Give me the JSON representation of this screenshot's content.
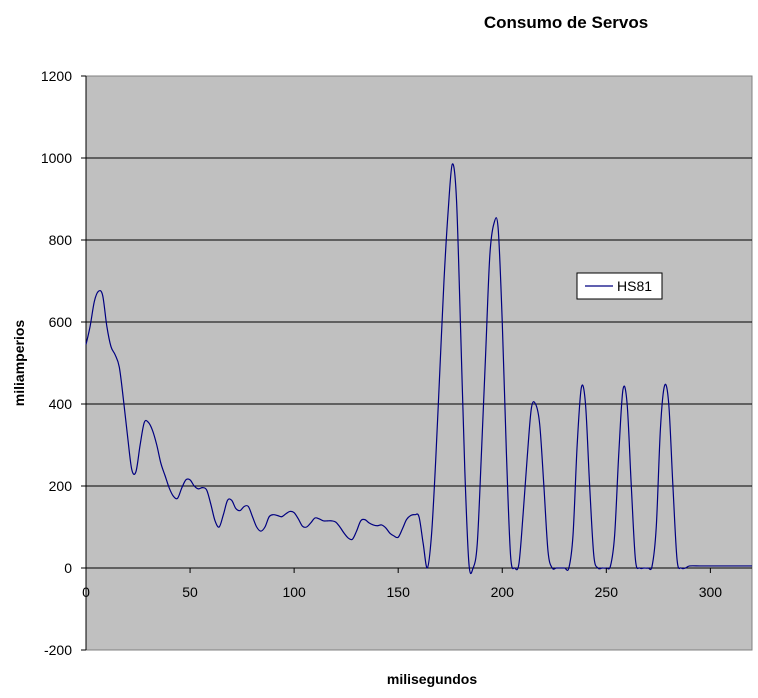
{
  "chart_data": {
    "type": "line",
    "title": "Consumo de Servos",
    "xlabel": "milisegundos",
    "ylabel": "miliamperios",
    "xlim": [
      0,
      320
    ],
    "ylim": [
      -200,
      1200
    ],
    "xticks": [
      0,
      50,
      100,
      150,
      200,
      250,
      300
    ],
    "yticks": [
      -200,
      0,
      200,
      400,
      600,
      800,
      1000,
      1200
    ],
    "grid": true,
    "legend_position": "right",
    "colors": {
      "plot_bg": "#c0c0c0",
      "line": "#000080",
      "grid": "#000000"
    },
    "series": [
      {
        "name": "HS81",
        "x": [
          0,
          2,
          4,
          6,
          8,
          10,
          12,
          14,
          16,
          18,
          20,
          22,
          24,
          26,
          28,
          30,
          32,
          34,
          36,
          38,
          40,
          42,
          44,
          46,
          48,
          50,
          52,
          54,
          56,
          58,
          60,
          62,
          64,
          66,
          68,
          70,
          72,
          74,
          76,
          78,
          80,
          82,
          84,
          86,
          88,
          90,
          92,
          94,
          96,
          98,
          100,
          102,
          104,
          106,
          108,
          110,
          112,
          114,
          116,
          118,
          120,
          122,
          124,
          126,
          128,
          130,
          132,
          134,
          136,
          138,
          140,
          142,
          144,
          146,
          148,
          150,
          152,
          154,
          156,
          158,
          160,
          162,
          164,
          166,
          168,
          170,
          172,
          174,
          176,
          178,
          180,
          182,
          184,
          186,
          188,
          190,
          192,
          194,
          196,
          198,
          200,
          202,
          204,
          206,
          208,
          210,
          212,
          214,
          216,
          218,
          220,
          222,
          224,
          226,
          228,
          230,
          232,
          234,
          236,
          238,
          240,
          242,
          244,
          246,
          248,
          250,
          252,
          254,
          256,
          258,
          260,
          262,
          264,
          266,
          268,
          270,
          272,
          274,
          276,
          278,
          280,
          282,
          284,
          286,
          288,
          290,
          295,
          300,
          305,
          310,
          315,
          320
        ],
        "values": [
          545,
          590,
          650,
          675,
          665,
          590,
          540,
          520,
          490,
          410,
          320,
          240,
          235,
          300,
          355,
          355,
          335,
          300,
          255,
          225,
          195,
          175,
          170,
          195,
          215,
          215,
          200,
          193,
          196,
          190,
          155,
          115,
          100,
          130,
          165,
          165,
          145,
          140,
          150,
          150,
          125,
          100,
          90,
          100,
          125,
          130,
          128,
          125,
          132,
          138,
          135,
          120,
          102,
          100,
          110,
          122,
          120,
          115,
          115,
          115,
          112,
          100,
          85,
          73,
          70,
          90,
          115,
          118,
          110,
          105,
          103,
          105,
          98,
          85,
          78,
          75,
          95,
          118,
          128,
          130,
          125,
          60,
          0,
          80,
          260,
          480,
          700,
          870,
          985,
          900,
          580,
          240,
          10,
          0,
          60,
          280,
          520,
          760,
          840,
          830,
          600,
          280,
          30,
          0,
          10,
          130,
          270,
          390,
          400,
          350,
          200,
          40,
          0,
          0,
          0,
          0,
          0,
          80,
          300,
          440,
          400,
          200,
          30,
          0,
          0,
          0,
          5,
          80,
          280,
          435,
          400,
          200,
          20,
          0,
          0,
          0,
          5,
          100,
          340,
          445,
          400,
          200,
          20,
          0,
          0,
          5,
          5,
          5,
          5,
          5,
          5,
          5
        ]
      }
    ]
  }
}
